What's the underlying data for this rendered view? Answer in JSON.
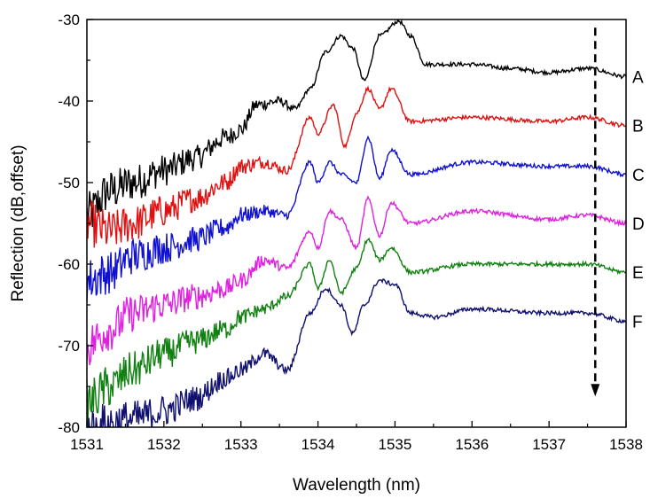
{
  "chart_data": {
    "type": "line",
    "title": "",
    "xlabel": "Wavelength (nm)",
    "ylabel": "Reflection (dB,offset)",
    "xlim": [
      1531,
      1538
    ],
    "ylim": [
      -80,
      -30
    ],
    "xticks": [
      1531,
      1532,
      1533,
      1534,
      1535,
      1536,
      1537,
      1538
    ],
    "yticks": [
      -80,
      -70,
      -60,
      -50,
      -40,
      -30
    ],
    "grid": false,
    "legend": "inline labels at right end of each curve",
    "arrow": {
      "x": 1537.6,
      "y_from": -31,
      "y_to": -76,
      "style": "dashed",
      "meaning": "offset direction A to F"
    },
    "series": [
      {
        "name": "A",
        "color": "#000000",
        "x": [
          1531.0,
          1531.3,
          1531.6,
          1532.0,
          1532.4,
          1532.8,
          1533.0,
          1533.2,
          1533.5,
          1533.7,
          1533.9,
          1534.1,
          1534.3,
          1534.45,
          1534.6,
          1534.8,
          1535.05,
          1535.2,
          1535.4,
          1536.0,
          1536.5,
          1537.0,
          1537.5,
          1538.0
        ],
        "y": [
          -54,
          -51,
          -50,
          -48.5,
          -47,
          -44.5,
          -43.5,
          -40.5,
          -40,
          -41,
          -38.5,
          -34,
          -32,
          -33.5,
          -37.5,
          -32,
          -30.2,
          -32,
          -35.5,
          -35.5,
          -36,
          -36.5,
          -36,
          -37
        ]
      },
      {
        "name": "B",
        "color": "#e01010",
        "x": [
          1531.0,
          1531.3,
          1531.6,
          1532.0,
          1532.4,
          1532.8,
          1533.0,
          1533.3,
          1533.6,
          1533.9,
          1534.0,
          1534.2,
          1534.35,
          1534.5,
          1534.65,
          1534.8,
          1534.95,
          1535.2,
          1536.0,
          1537.0,
          1537.5,
          1538.0
        ],
        "y": [
          -55,
          -56,
          -55,
          -53.5,
          -52,
          -50,
          -48,
          -47.5,
          -48.5,
          -42,
          -44,
          -40.5,
          -45.5,
          -41.5,
          -38.5,
          -41,
          -38.5,
          -42.5,
          -42,
          -42.5,
          -42,
          -43
        ]
      },
      {
        "name": "C",
        "color": "#1010d0",
        "x": [
          1531.0,
          1531.3,
          1531.6,
          1532.0,
          1532.4,
          1532.8,
          1533.0,
          1533.3,
          1533.6,
          1533.9,
          1534.0,
          1534.15,
          1534.3,
          1534.5,
          1534.65,
          1534.8,
          1534.95,
          1535.2,
          1536.0,
          1537.0,
          1537.5,
          1538.0
        ],
        "y": [
          -62,
          -61,
          -59,
          -58,
          -57,
          -55.5,
          -54,
          -53.5,
          -54,
          -47.5,
          -50,
          -47.5,
          -49,
          -50,
          -44.5,
          -49.5,
          -46,
          -49,
          -47.5,
          -48,
          -48,
          -49
        ]
      },
      {
        "name": "D",
        "color": "#e020e0",
        "x": [
          1531.0,
          1531.3,
          1531.6,
          1532.0,
          1532.4,
          1532.8,
          1533.0,
          1533.3,
          1533.6,
          1533.9,
          1534.0,
          1534.15,
          1534.3,
          1534.5,
          1534.65,
          1534.8,
          1534.95,
          1535.2,
          1536.0,
          1537.0,
          1537.5,
          1538.0
        ],
        "y": [
          -70,
          -68,
          -66,
          -65,
          -64,
          -63,
          -62,
          -59.5,
          -60.5,
          -56,
          -58,
          -53.5,
          -54.5,
          -58,
          -52,
          -56.5,
          -52.5,
          -55,
          -53.5,
          -54.5,
          -54,
          -55
        ]
      },
      {
        "name": "E",
        "color": "#108010",
        "x": [
          1531.0,
          1531.3,
          1531.6,
          1532.0,
          1532.4,
          1532.8,
          1533.0,
          1533.3,
          1533.6,
          1533.9,
          1534.0,
          1534.15,
          1534.3,
          1534.5,
          1534.65,
          1534.8,
          1534.95,
          1535.2,
          1536.0,
          1537.0,
          1537.5,
          1538.0
        ],
        "y": [
          -77,
          -75,
          -73,
          -71,
          -69.5,
          -68,
          -66.5,
          -65.5,
          -64,
          -60,
          -63,
          -59.5,
          -63.5,
          -60.5,
          -57,
          -59.5,
          -58,
          -61,
          -60,
          -60,
          -60,
          -61
        ]
      },
      {
        "name": "F",
        "color": "#101070",
        "x": [
          1531.0,
          1531.3,
          1531.6,
          1532.0,
          1532.4,
          1532.8,
          1533.0,
          1533.3,
          1533.6,
          1533.9,
          1534.1,
          1534.3,
          1534.45,
          1534.6,
          1534.8,
          1535.0,
          1535.2,
          1535.5,
          1536.0,
          1537.0,
          1537.5,
          1538.0
        ],
        "y": [
          -80.5,
          -79.5,
          -79,
          -78,
          -76.5,
          -74,
          -73,
          -71,
          -73,
          -66,
          -63,
          -65,
          -68.5,
          -65,
          -62,
          -62.5,
          -66,
          -66.5,
          -65.5,
          -66,
          -66,
          -67
        ]
      }
    ]
  }
}
